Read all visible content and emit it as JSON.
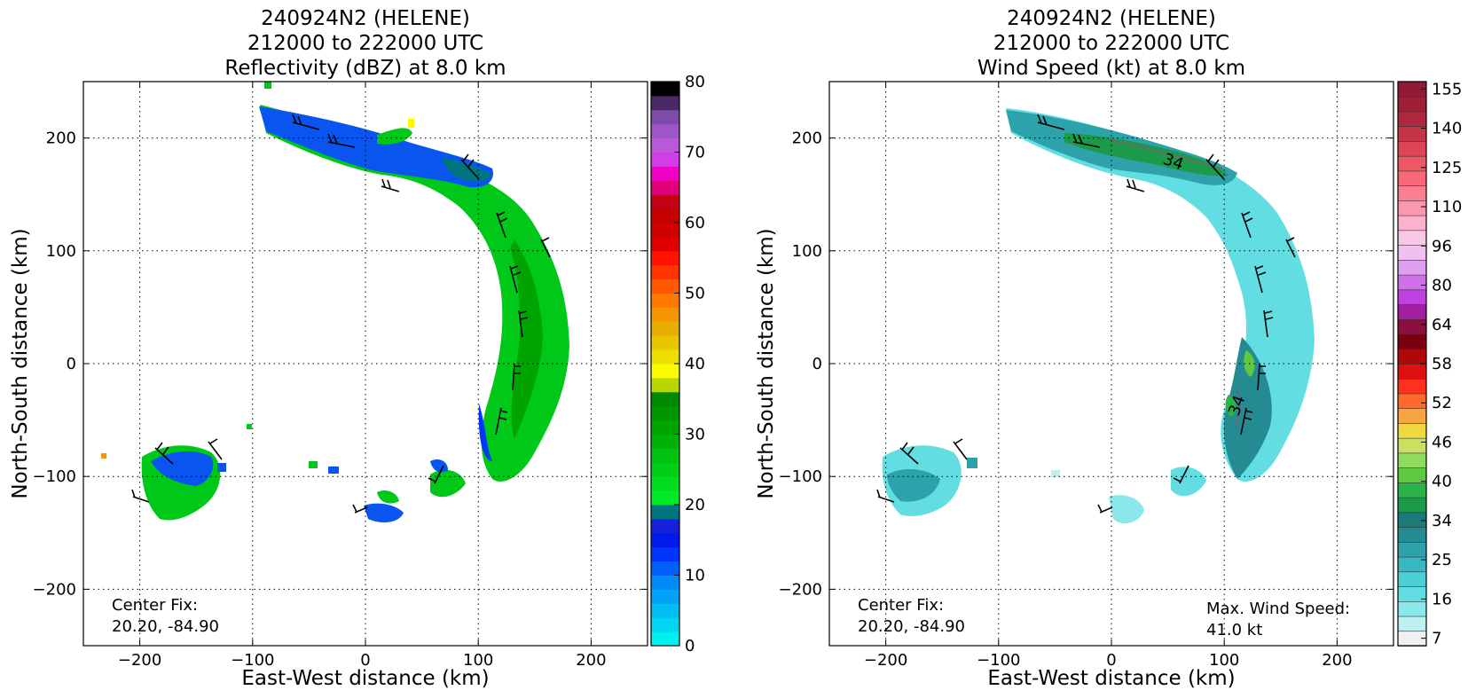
{
  "chart_data": [
    {
      "type": "heatmap",
      "title": [
        "240924N2 (HELENE)",
        "212000 to 222000 UTC",
        "Reflectivity (dBZ) at 8.0 km"
      ],
      "xlabel": "East-West distance (km)",
      "ylabel": "North-South distance (km)",
      "xlim": [
        -250,
        250
      ],
      "ylim": [
        -250,
        250
      ],
      "xticks": [
        -200,
        -100,
        0,
        100,
        200
      ],
      "yticks": [
        -200,
        -100,
        0,
        100,
        200
      ],
      "grid": true,
      "annotations": [
        {
          "lines": [
            "Center Fix:",
            "20.20, -84.90"
          ],
          "position": "bottom-left"
        }
      ],
      "colorbar": {
        "label": "dBZ",
        "min": 0,
        "max": 80,
        "ticks": [
          0,
          10,
          20,
          30,
          40,
          50,
          60,
          70,
          80
        ],
        "colors": [
          "#00f0f0",
          "#00d6f2",
          "#00bdf4",
          "#00a3f6",
          "#008af8",
          "#0060fa",
          "#0036fb",
          "#001aea",
          "#1620d8",
          "#00757f",
          "#00ea2a",
          "#00dc20",
          "#00ce18",
          "#00c010",
          "#00b208",
          "#00a400",
          "#009600",
          "#008800",
          "#b6d700",
          "#fafa00",
          "#ede000",
          "#e8c600",
          "#e6ae00",
          "#f59500",
          "#ff7b00",
          "#ff5a00",
          "#ff3500",
          "#ff1200",
          "#e00000",
          "#cf0000",
          "#c70000",
          "#c20016",
          "#e0007a",
          "#ef00c5",
          "#d13ee8",
          "#b958d8",
          "#9d56c8",
          "#7c4ca6",
          "#4a2a66",
          "#000000"
        ]
      },
      "overlays": [
        "wind barbs"
      ]
    },
    {
      "type": "heatmap",
      "title": [
        "240924N2 (HELENE)",
        "212000 to 222000 UTC",
        "Wind Speed (kt) at 8.0 km"
      ],
      "xlabel": "East-West distance (km)",
      "ylabel": "North-South distance (km)",
      "xlim": [
        -250,
        250
      ],
      "ylim": [
        -250,
        250
      ],
      "xticks": [
        -200,
        -100,
        0,
        100,
        200
      ],
      "yticks": [
        -200,
        -100,
        0,
        100,
        200
      ],
      "grid": true,
      "annotations": [
        {
          "lines": [
            "Center Fix:",
            "20.20, -84.90"
          ],
          "position": "bottom-left"
        },
        {
          "lines": [
            "Max. Wind Speed:",
            "41.0 kt"
          ],
          "position": "bottom-right"
        }
      ],
      "contour_labels": [
        "34",
        "34"
      ],
      "colorbar": {
        "label": "kt",
        "ticks": [
          7,
          16,
          25,
          34,
          40,
          46,
          52,
          58,
          64,
          80,
          96,
          110,
          125,
          140,
          155
        ],
        "colors": [
          "#f0f0f0",
          "#bff0f0",
          "#8ae8ea",
          "#62dde2",
          "#4dcfd6",
          "#3ab8c2",
          "#2ea2ab",
          "#248b92",
          "#1e7a78",
          "#1b9a4a",
          "#2bb34a",
          "#5ec840",
          "#8fdb60",
          "#c9e060",
          "#f0d840",
          "#f7a542",
          "#ff6a2a",
          "#ff3020",
          "#e01010",
          "#b00808",
          "#7a0010",
          "#8b1040",
          "#a020a0",
          "#c040e0",
          "#d070ea",
          "#e0a0f0",
          "#efc0f0",
          "#f8c8e8",
          "#fbb2cc",
          "#fb98b0",
          "#fa8090",
          "#f86878",
          "#ee5866",
          "#dd4456",
          "#c63448",
          "#b0283e",
          "#a01e38",
          "#931a36"
        ]
      },
      "overlays": [
        "wind barbs"
      ]
    }
  ]
}
